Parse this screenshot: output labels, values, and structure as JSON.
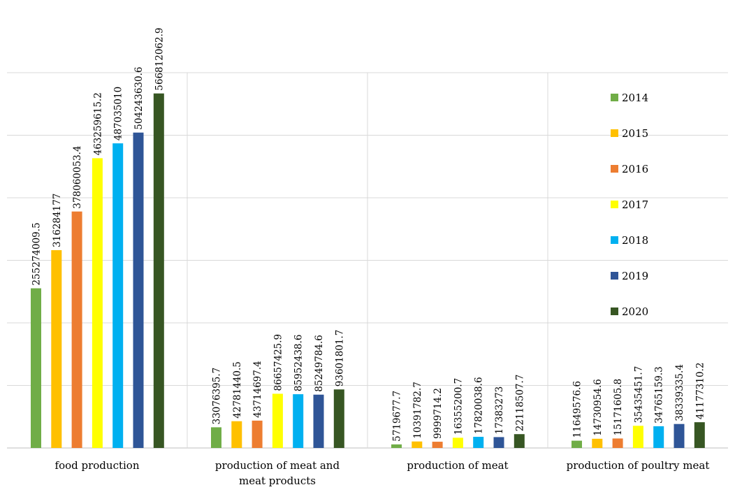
{
  "chart_data": {
    "type": "bar",
    "title": "",
    "xlabel": "",
    "ylabel": "",
    "ylim": [
      0,
      600000000
    ],
    "grid": true,
    "gridlines": [
      0,
      100000000,
      200000000,
      300000000,
      400000000,
      500000000,
      600000000
    ],
    "legend_position": "right",
    "categories": [
      [
        "food production"
      ],
      [
        "production of meat and",
        "meat products"
      ],
      [
        "production of meat"
      ],
      [
        "production of poultry meat"
      ]
    ],
    "series": [
      {
        "name": "2014",
        "color": "#70ad47",
        "values": [
          255274009.5,
          33076395.7,
          5719677.7,
          11649576.6
        ],
        "labels": [
          "255274009.5",
          "33076395.7",
          "5719677.7",
          "11649576.6"
        ]
      },
      {
        "name": "2015",
        "color": "#ffc000",
        "values": [
          316284177,
          42781440.5,
          10391782.7,
          14730954.6
        ],
        "labels": [
          "316284177",
          "42781440.5",
          "10391782.7",
          "14730954.6"
        ]
      },
      {
        "name": "2016",
        "color": "#ed7d31",
        "values": [
          378060053.4,
          43714697.4,
          9999714.2,
          15171605.8
        ],
        "labels": [
          "378060053.4",
          "43714697.4",
          "9999714.2",
          "15171605.8"
        ]
      },
      {
        "name": "2017",
        "color": "#ffff00",
        "values": [
          463259615.2,
          86657425.9,
          16355200.7,
          35435451.7
        ],
        "labels": [
          "463259615.2",
          "86657425.9",
          "16355200.7",
          "35435451.7"
        ]
      },
      {
        "name": "2018",
        "color": "#00b0f0",
        "values": [
          487035010,
          85952438.6,
          17820038.6,
          34765159.3
        ],
        "labels": [
          "487035010",
          "85952438.6",
          "17820038.6",
          "34765159.3"
        ]
      },
      {
        "name": "2019",
        "color": "#2f5597",
        "values": [
          504243630.6,
          85249784.6,
          17383273,
          38339335.4
        ],
        "labels": [
          "504243630.6",
          "85249784.6",
          "17383273",
          "38339335.4"
        ]
      },
      {
        "name": "2020",
        "color": "#375623",
        "values": [
          566812062.9,
          93601801.7,
          22118507.7,
          41177310.2
        ],
        "labels": [
          "566812062.9",
          "93601801.7",
          "22118507.7",
          "41177310.2"
        ]
      }
    ]
  }
}
